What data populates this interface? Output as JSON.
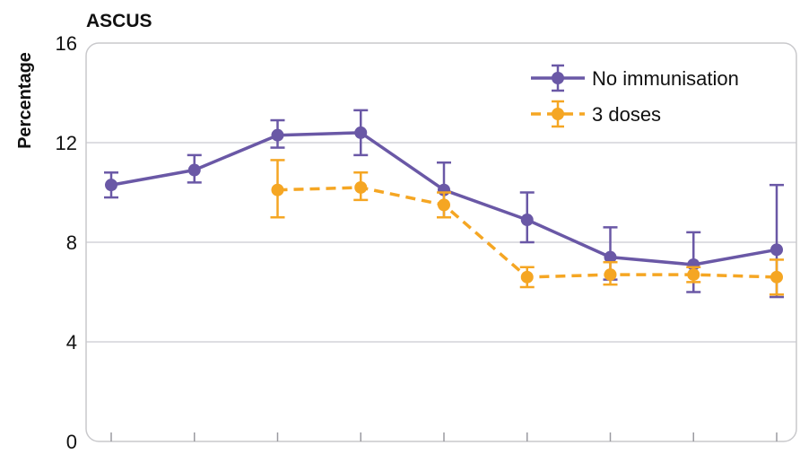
{
  "chart_data": {
    "type": "line",
    "title": "ASCUS",
    "ylabel": "Percentage",
    "xlabel": "",
    "ylim": [
      0,
      16
    ],
    "yticks": [
      0,
      4,
      8,
      12,
      16
    ],
    "x": [
      1,
      2,
      3,
      4,
      5,
      6,
      7,
      8,
      9
    ],
    "grid": true,
    "legend_position": "top-right",
    "series": [
      {
        "name": "No immunisation",
        "color": "#6a58a6",
        "line_style": "solid",
        "values": [
          10.3,
          10.9,
          12.3,
          12.4,
          10.1,
          8.9,
          7.4,
          7.1,
          7.7
        ],
        "err_low": [
          9.8,
          10.4,
          11.8,
          11.5,
          9.0,
          8.0,
          6.5,
          6.0,
          5.8
        ],
        "err_high": [
          10.8,
          11.5,
          12.9,
          13.3,
          11.2,
          10.0,
          8.6,
          8.4,
          10.3
        ]
      },
      {
        "name": "3 doses",
        "color": "#f5a623",
        "line_style": "dashed",
        "values": [
          null,
          null,
          10.1,
          10.2,
          9.5,
          6.6,
          6.7,
          6.7,
          6.6
        ],
        "err_low": [
          null,
          null,
          9.0,
          9.7,
          9.0,
          6.2,
          6.3,
          6.4,
          5.9
        ],
        "err_high": [
          null,
          null,
          11.3,
          10.8,
          10.0,
          7.0,
          7.2,
          7.0,
          7.3
        ]
      }
    ]
  }
}
